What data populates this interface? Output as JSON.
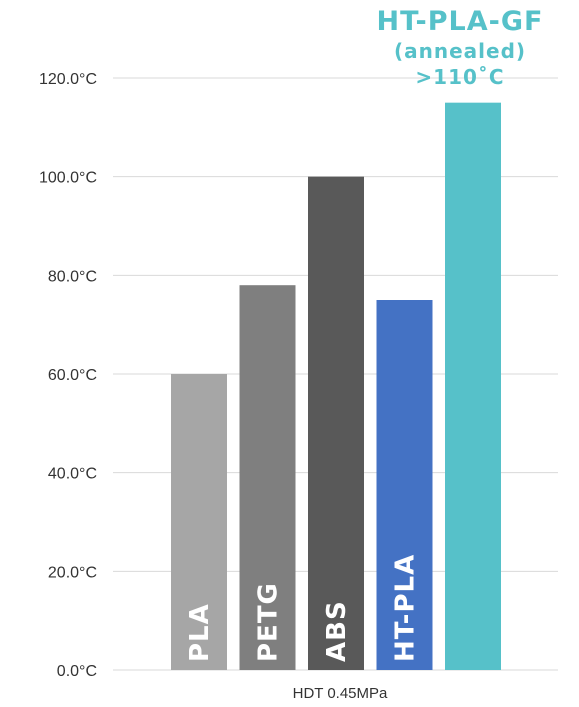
{
  "chart_data": {
    "type": "bar",
    "categories": [
      "PLA",
      "PETG",
      "ABS",
      "HT-PLA",
      "HT-PLA-GF"
    ],
    "values": [
      60,
      78,
      100,
      75,
      115
    ],
    "colors": [
      "#a6a6a6",
      "#7f7f7f",
      "#595959",
      "#4472c4",
      "#56c1c9"
    ],
    "bar_labels": [
      "PLA",
      "PETG",
      "ABS",
      "HT-PLA",
      ""
    ],
    "xlabel": "HDT 0.45MPa",
    "ylabel": "",
    "ylim": [
      0,
      120
    ],
    "yticks": [
      "0.0°C",
      "20.0°C",
      "40.0°C",
      "60.0°C",
      "80.0°C",
      "100.0°C",
      "120.0°C"
    ],
    "grid": true,
    "annotation": {
      "line1": "HT-PLA-GF",
      "line2": "(annealed)",
      "line3": ">110˚C",
      "color": "#56c1c9"
    }
  }
}
